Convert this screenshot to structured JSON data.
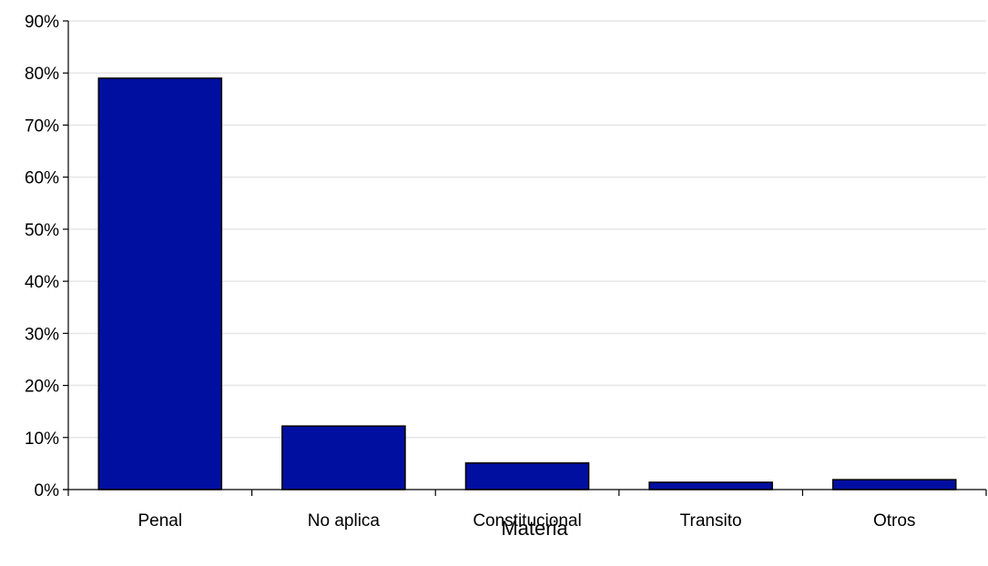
{
  "chart_data": {
    "type": "bar",
    "title": "",
    "xlabel": "Materia",
    "ylabel": "",
    "categories": [
      "Penal",
      "No aplica",
      "Constitucional",
      "Transito",
      "Otros"
    ],
    "values": [
      79,
      12.2,
      5.1,
      1.4,
      1.9
    ],
    "ylim": [
      0,
      90
    ],
    "yticks": [
      0,
      10,
      20,
      30,
      40,
      50,
      60,
      70,
      80,
      90
    ],
    "ytick_labels": [
      "0%",
      "10%",
      "20%",
      "30%",
      "40%",
      "50%",
      "60%",
      "70%",
      "80%",
      "90%"
    ],
    "grid": true,
    "legend": "none",
    "bar_color": "#000FA0",
    "bar_edge_color": "#000000",
    "grid_color": "#E6E6E6"
  }
}
